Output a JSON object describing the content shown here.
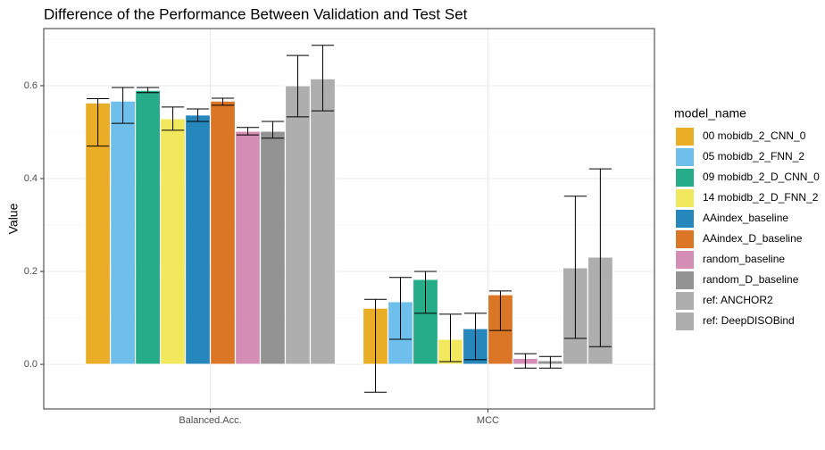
{
  "chart_data": {
    "type": "bar",
    "title": "Difference of the Performance Between Validation and Test Set",
    "y_label": "Value",
    "legend_title": "model_name",
    "categories": [
      "Balanced.Acc.",
      "MCC"
    ],
    "ylim": [
      -0.096,
      0.723
    ],
    "yticks": [
      {
        "value": 0,
        "label": "0.0"
      },
      {
        "value": 0.2,
        "label": "0.2"
      },
      {
        "value": 0.4,
        "label": "0.4"
      },
      {
        "value": 0.6,
        "label": "0.6"
      }
    ],
    "grid": true,
    "legend_position": "right",
    "series": [
      {
        "name": "00 mobidb_2_CNN_0",
        "color": "#E69F00",
        "values": [
          0.563,
          0.121
        ],
        "lower": [
          0.47,
          -0.06
        ],
        "upper": [
          0.572,
          0.14
        ]
      },
      {
        "name": "05 mobidb_2_FNN_2",
        "color": "#56B4E9",
        "values": [
          0.567,
          0.135
        ],
        "lower": [
          0.519,
          0.054
        ],
        "upper": [
          0.596,
          0.187
        ]
      },
      {
        "name": "09 mobidb_2_D_CNN_0",
        "color": "#009E73",
        "values": [
          0.59,
          0.183
        ],
        "lower": [
          0.585,
          0.11
        ],
        "upper": [
          0.596,
          0.2
        ]
      },
      {
        "name": "14 mobidb_2_D_FNN_2",
        "color": "#F0E442",
        "values": [
          0.529,
          0.054
        ],
        "lower": [
          0.504,
          0.006
        ],
        "upper": [
          0.554,
          0.108
        ]
      },
      {
        "name": "AAindex_baseline",
        "color": "#0072B2",
        "values": [
          0.537,
          0.077
        ],
        "lower": [
          0.523,
          0.01
        ],
        "upper": [
          0.55,
          0.11
        ]
      },
      {
        "name": "AAindex_D_baseline",
        "color": "#D55E00",
        "values": [
          0.567,
          0.15
        ],
        "lower": [
          0.558,
          0.073
        ],
        "upper": [
          0.573,
          0.158
        ]
      },
      {
        "name": "random_baseline",
        "color": "#CC79A7",
        "values": [
          0.502,
          0.013
        ],
        "lower": [
          0.494,
          -0.008
        ],
        "upper": [
          0.51,
          0.023
        ]
      },
      {
        "name": "random_D_baseline",
        "color": "#808080",
        "values": [
          0.502,
          0.008
        ],
        "lower": [
          0.487,
          -0.008
        ],
        "upper": [
          0.523,
          0.017
        ]
      },
      {
        "name": "ref: ANCHOR2",
        "color": "#A0A0A0",
        "values": [
          0.6,
          0.208
        ],
        "lower": [
          0.533,
          0.056
        ],
        "upper": [
          0.665,
          0.362
        ]
      },
      {
        "name": "ref: DeepDISOBind",
        "color": "#A0A0A0",
        "values": [
          0.615,
          0.231
        ],
        "lower": [
          0.546,
          0.038
        ],
        "upper": [
          0.687,
          0.421
        ]
      }
    ]
  }
}
